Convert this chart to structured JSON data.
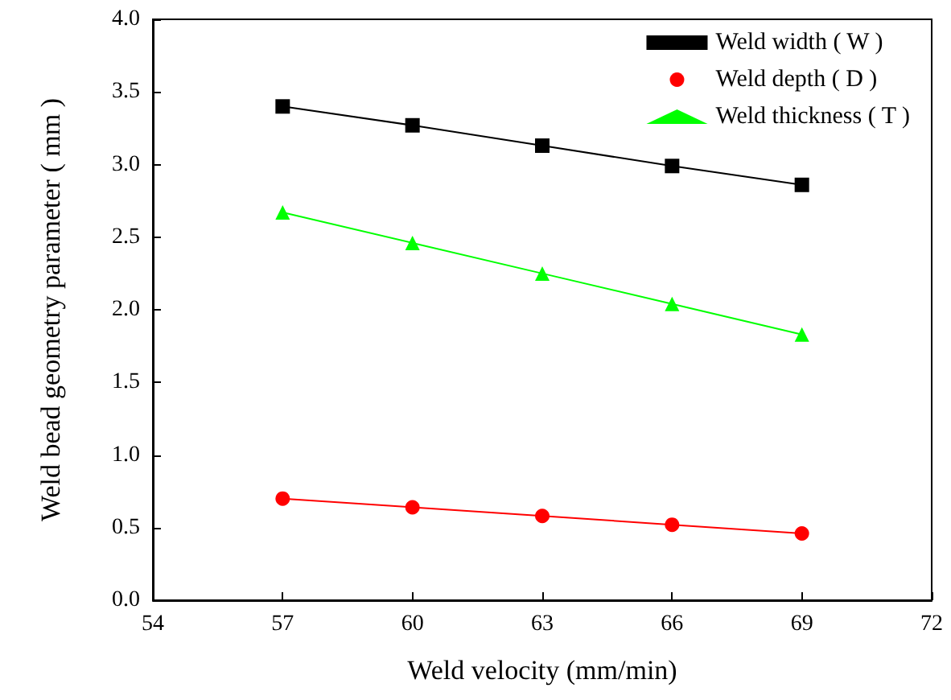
{
  "chart_data": {
    "type": "line",
    "xlabel": "Weld velocity (mm/min)",
    "ylabel": "Weld bead geometry parameter ( mm )",
    "x": [
      57,
      60,
      63,
      66,
      69
    ],
    "series": [
      {
        "name": "Weld width ( W )",
        "color": "#000000",
        "marker": "square",
        "values": [
          3.4,
          3.27,
          3.13,
          2.99,
          2.86
        ]
      },
      {
        "name": "Weld depth ( D )",
        "color": "#ff0000",
        "marker": "circle",
        "values": [
          0.7,
          0.64,
          0.58,
          0.52,
          0.46
        ]
      },
      {
        "name": "Weld thickness ( T )",
        "color": "#00ff00",
        "marker": "triangle",
        "values": [
          2.67,
          2.46,
          2.25,
          2.04,
          1.83
        ]
      }
    ],
    "xlim": [
      54,
      72
    ],
    "xticks": [
      54,
      57,
      60,
      63,
      66,
      69,
      72
    ],
    "ylim": [
      0,
      4
    ],
    "yticks": [
      {
        "value": 0,
        "label": "0.0"
      },
      {
        "value": 0.5,
        "label": "0.5"
      },
      {
        "value": 1,
        "label": "1.0"
      },
      {
        "value": 1.5,
        "label": "1.5"
      },
      {
        "value": 2,
        "label": "2.0"
      },
      {
        "value": 2.5,
        "label": "2.5"
      },
      {
        "value": 3,
        "label": "3.0"
      },
      {
        "value": 3.5,
        "label": "3.5"
      },
      {
        "value": 4,
        "label": "4.0"
      }
    ],
    "grid": false,
    "legend": "top right",
    "line_style": "solid"
  }
}
